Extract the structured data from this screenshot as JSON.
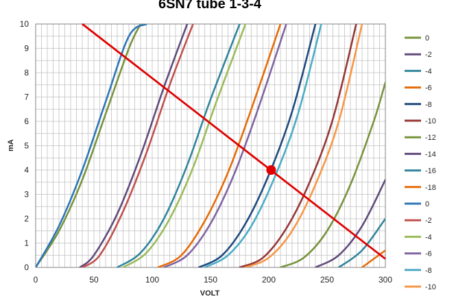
{
  "chart_data": {
    "type": "line",
    "title": "6SN7 tube 1-3-4",
    "xlabel": "VOLT",
    "ylabel": "mA",
    "xlim": [
      0,
      300
    ],
    "ylim": [
      0,
      10
    ],
    "x_ticks": [
      "0",
      "50",
      "100",
      "150",
      "200",
      "250",
      "300"
    ],
    "y_ticks": [
      "0",
      "1",
      "2",
      "3",
      "4",
      "5",
      "6",
      "7",
      "8",
      "9",
      "10"
    ],
    "grid": true,
    "legend_position": "right",
    "series": [
      {
        "name": "0",
        "color": "#77933c",
        "x": [
          0,
          20,
          40,
          60,
          80,
          90
        ],
        "y": [
          0,
          1.5,
          3.6,
          6.3,
          9.0,
          10
        ]
      },
      {
        "name": "-2",
        "color": "#604a7b",
        "x": [
          38,
          50,
          70,
          90,
          110,
          130
        ],
        "y": [
          0,
          0.5,
          2.2,
          4.6,
          7.4,
          10
        ]
      },
      {
        "name": "-4",
        "color": "#31859c",
        "x": [
          70,
          90,
          110,
          130,
          150,
          175
        ],
        "y": [
          0,
          0.6,
          2.0,
          4.2,
          6.9,
          10
        ]
      },
      {
        "name": "-6",
        "color": "#e46c0a",
        "x": [
          105,
          125,
          145,
          165,
          185,
          210
        ],
        "y": [
          0,
          0.5,
          1.9,
          3.9,
          6.5,
          10
        ]
      },
      {
        "name": "-8",
        "color": "#1f497d",
        "x": [
          140,
          160,
          180,
          200,
          220,
          240
        ],
        "y": [
          0,
          0.5,
          1.8,
          3.8,
          6.4,
          10
        ]
      },
      {
        "name": "-10",
        "color": "#953735",
        "x": [
          175,
          195,
          215,
          235,
          255,
          275
        ],
        "y": [
          0,
          0.4,
          1.6,
          3.5,
          6.1,
          10
        ]
      },
      {
        "name": "-12",
        "color": "#77933c",
        "x": [
          210,
          230,
          250,
          270,
          290,
          300
        ],
        "y": [
          0,
          0.4,
          1.5,
          3.4,
          6.0,
          7.6
        ]
      },
      {
        "name": "-14",
        "color": "#604a7b",
        "x": [
          240,
          260,
          280,
          300
        ],
        "y": [
          0,
          0.5,
          1.7,
          3.6
        ]
      },
      {
        "name": "-16",
        "color": "#31859c",
        "x": [
          260,
          280,
          300
        ],
        "y": [
          0,
          0.7,
          2.0
        ]
      },
      {
        "name": "-18",
        "color": "#e46c0a",
        "x": [
          280,
          300
        ],
        "y": [
          0,
          0.7
        ]
      },
      {
        "name": "0",
        "color": "#2e75b6",
        "x": [
          0,
          20,
          40,
          60,
          80,
          95
        ],
        "y": [
          0,
          1.7,
          4.0,
          6.8,
          9.5,
          10
        ]
      },
      {
        "name": "-2",
        "color": "#c0504d",
        "x": [
          40,
          55,
          75,
          95,
          115,
          135
        ],
        "y": [
          0,
          0.5,
          2.3,
          4.7,
          7.5,
          10
        ]
      },
      {
        "name": "-4",
        "color": "#9bbb59",
        "x": [
          75,
          95,
          115,
          135,
          155,
          180
        ],
        "y": [
          0,
          0.6,
          2.0,
          4.1,
          6.8,
          10
        ]
      },
      {
        "name": "-6",
        "color": "#8064a2",
        "x": [
          110,
          130,
          150,
          170,
          190,
          215
        ],
        "y": [
          0,
          0.5,
          1.8,
          3.8,
          6.4,
          10
        ]
      },
      {
        "name": "-8",
        "color": "#4bacc6",
        "x": [
          145,
          165,
          185,
          205,
          225,
          245
        ],
        "y": [
          0,
          0.5,
          1.7,
          3.7,
          6.3,
          10
        ]
      },
      {
        "name": "-10",
        "color": "#f79646",
        "x": [
          180,
          200,
          220,
          240,
          260,
          280
        ],
        "y": [
          0,
          0.4,
          1.5,
          3.4,
          6.0,
          10
        ]
      }
    ],
    "load_line": {
      "color": "#e00000",
      "x": [
        40,
        300
      ],
      "y": [
        10,
        0.35
      ]
    },
    "operating_point": {
      "color": "#e00000",
      "x": 202,
      "y": 4.0
    }
  }
}
